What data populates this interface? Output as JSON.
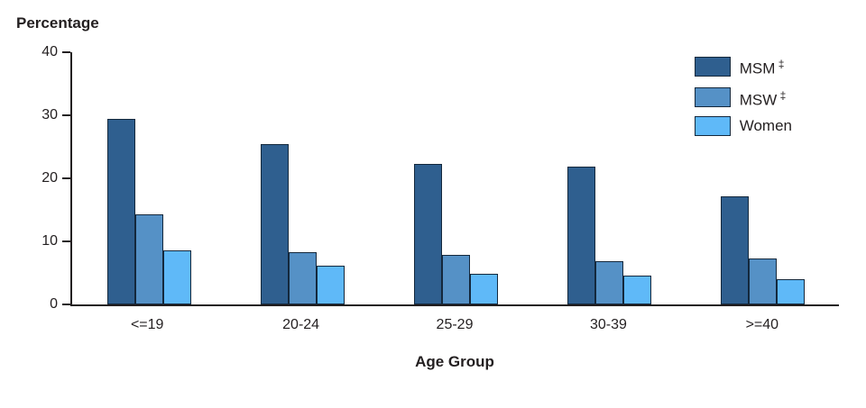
{
  "chart_data": {
    "type": "bar",
    "title": "",
    "ylabel": "Percentage",
    "xlabel": "Age Group",
    "categories": [
      "<=19",
      "20-24",
      "25-29",
      "30-39",
      ">=40"
    ],
    "series": [
      {
        "name": "MSM",
        "footnote": "‡",
        "color": "#2F5F8F",
        "values": [
          29.4,
          25.5,
          22.3,
          21.8,
          17.2
        ]
      },
      {
        "name": "MSW",
        "footnote": "‡",
        "color": "#5591C6",
        "values": [
          14.3,
          8.3,
          7.8,
          6.8,
          7.3
        ]
      },
      {
        "name": "Women",
        "footnote": "",
        "color": "#5FB9F8",
        "values": [
          8.6,
          6.1,
          4.8,
          4.6,
          4.0
        ]
      }
    ],
    "ylim": [
      0,
      40
    ],
    "yticks": [
      0,
      10,
      20,
      30,
      40
    ],
    "grid": false,
    "legend_position": "top-right",
    "axis_color": "#231f20",
    "background_color": "#ffffff"
  }
}
